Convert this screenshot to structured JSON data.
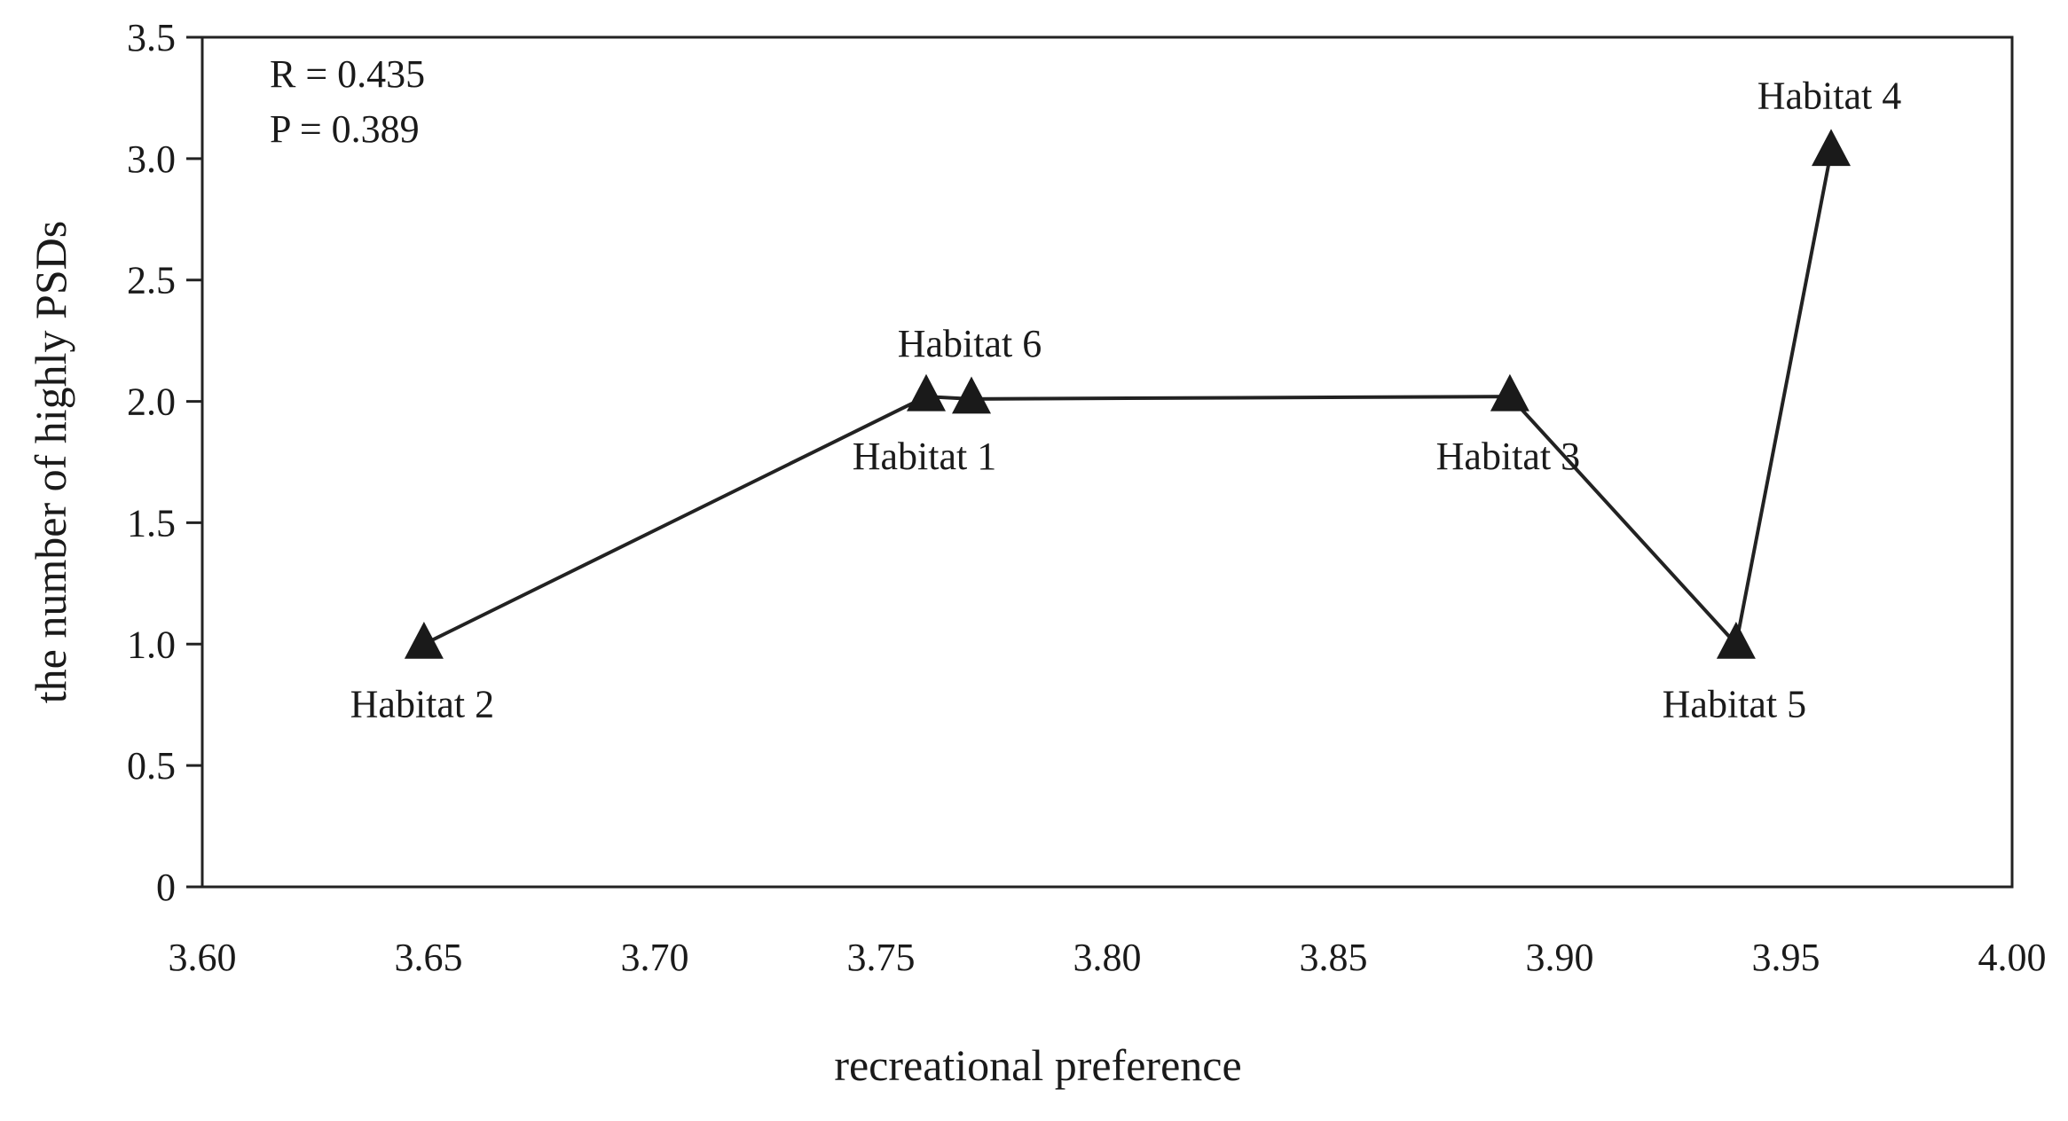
{
  "chart_data": {
    "type": "line",
    "xlabel": "recreational preference",
    "ylabel": "the number of highly PSDs",
    "xlim": [
      3.6,
      4.0
    ],
    "ylim": [
      0,
      3.5
    ],
    "x_ticks": [
      "3.60",
      "3.65",
      "3.70",
      "3.75",
      "3.80",
      "3.85",
      "3.90",
      "3.95",
      "4.00"
    ],
    "y_ticks": [
      "0",
      "0.5",
      "1.0",
      "1.5",
      "2.0",
      "2.5",
      "3.0",
      "3.5"
    ],
    "grid": false,
    "marker": "triangle",
    "annotations": [
      "R = 0.435",
      "P = 0.389"
    ],
    "points": [
      {
        "label": "Habitat 2",
        "x": 3.649,
        "y": 1.0,
        "label_pos": "below"
      },
      {
        "label": "Habitat 1",
        "x": 3.76,
        "y": 2.02,
        "label_pos": "below"
      },
      {
        "label": "Habitat 6",
        "x": 3.77,
        "y": 2.01,
        "label_pos": "above"
      },
      {
        "label": "Habitat 3",
        "x": 3.889,
        "y": 2.02,
        "label_pos": "below"
      },
      {
        "label": "Habitat 5",
        "x": 3.939,
        "y": 1.0,
        "label_pos": "below"
      },
      {
        "label": "Habitat 4",
        "x": 3.96,
        "y": 3.03,
        "label_pos": "above"
      }
    ]
  }
}
